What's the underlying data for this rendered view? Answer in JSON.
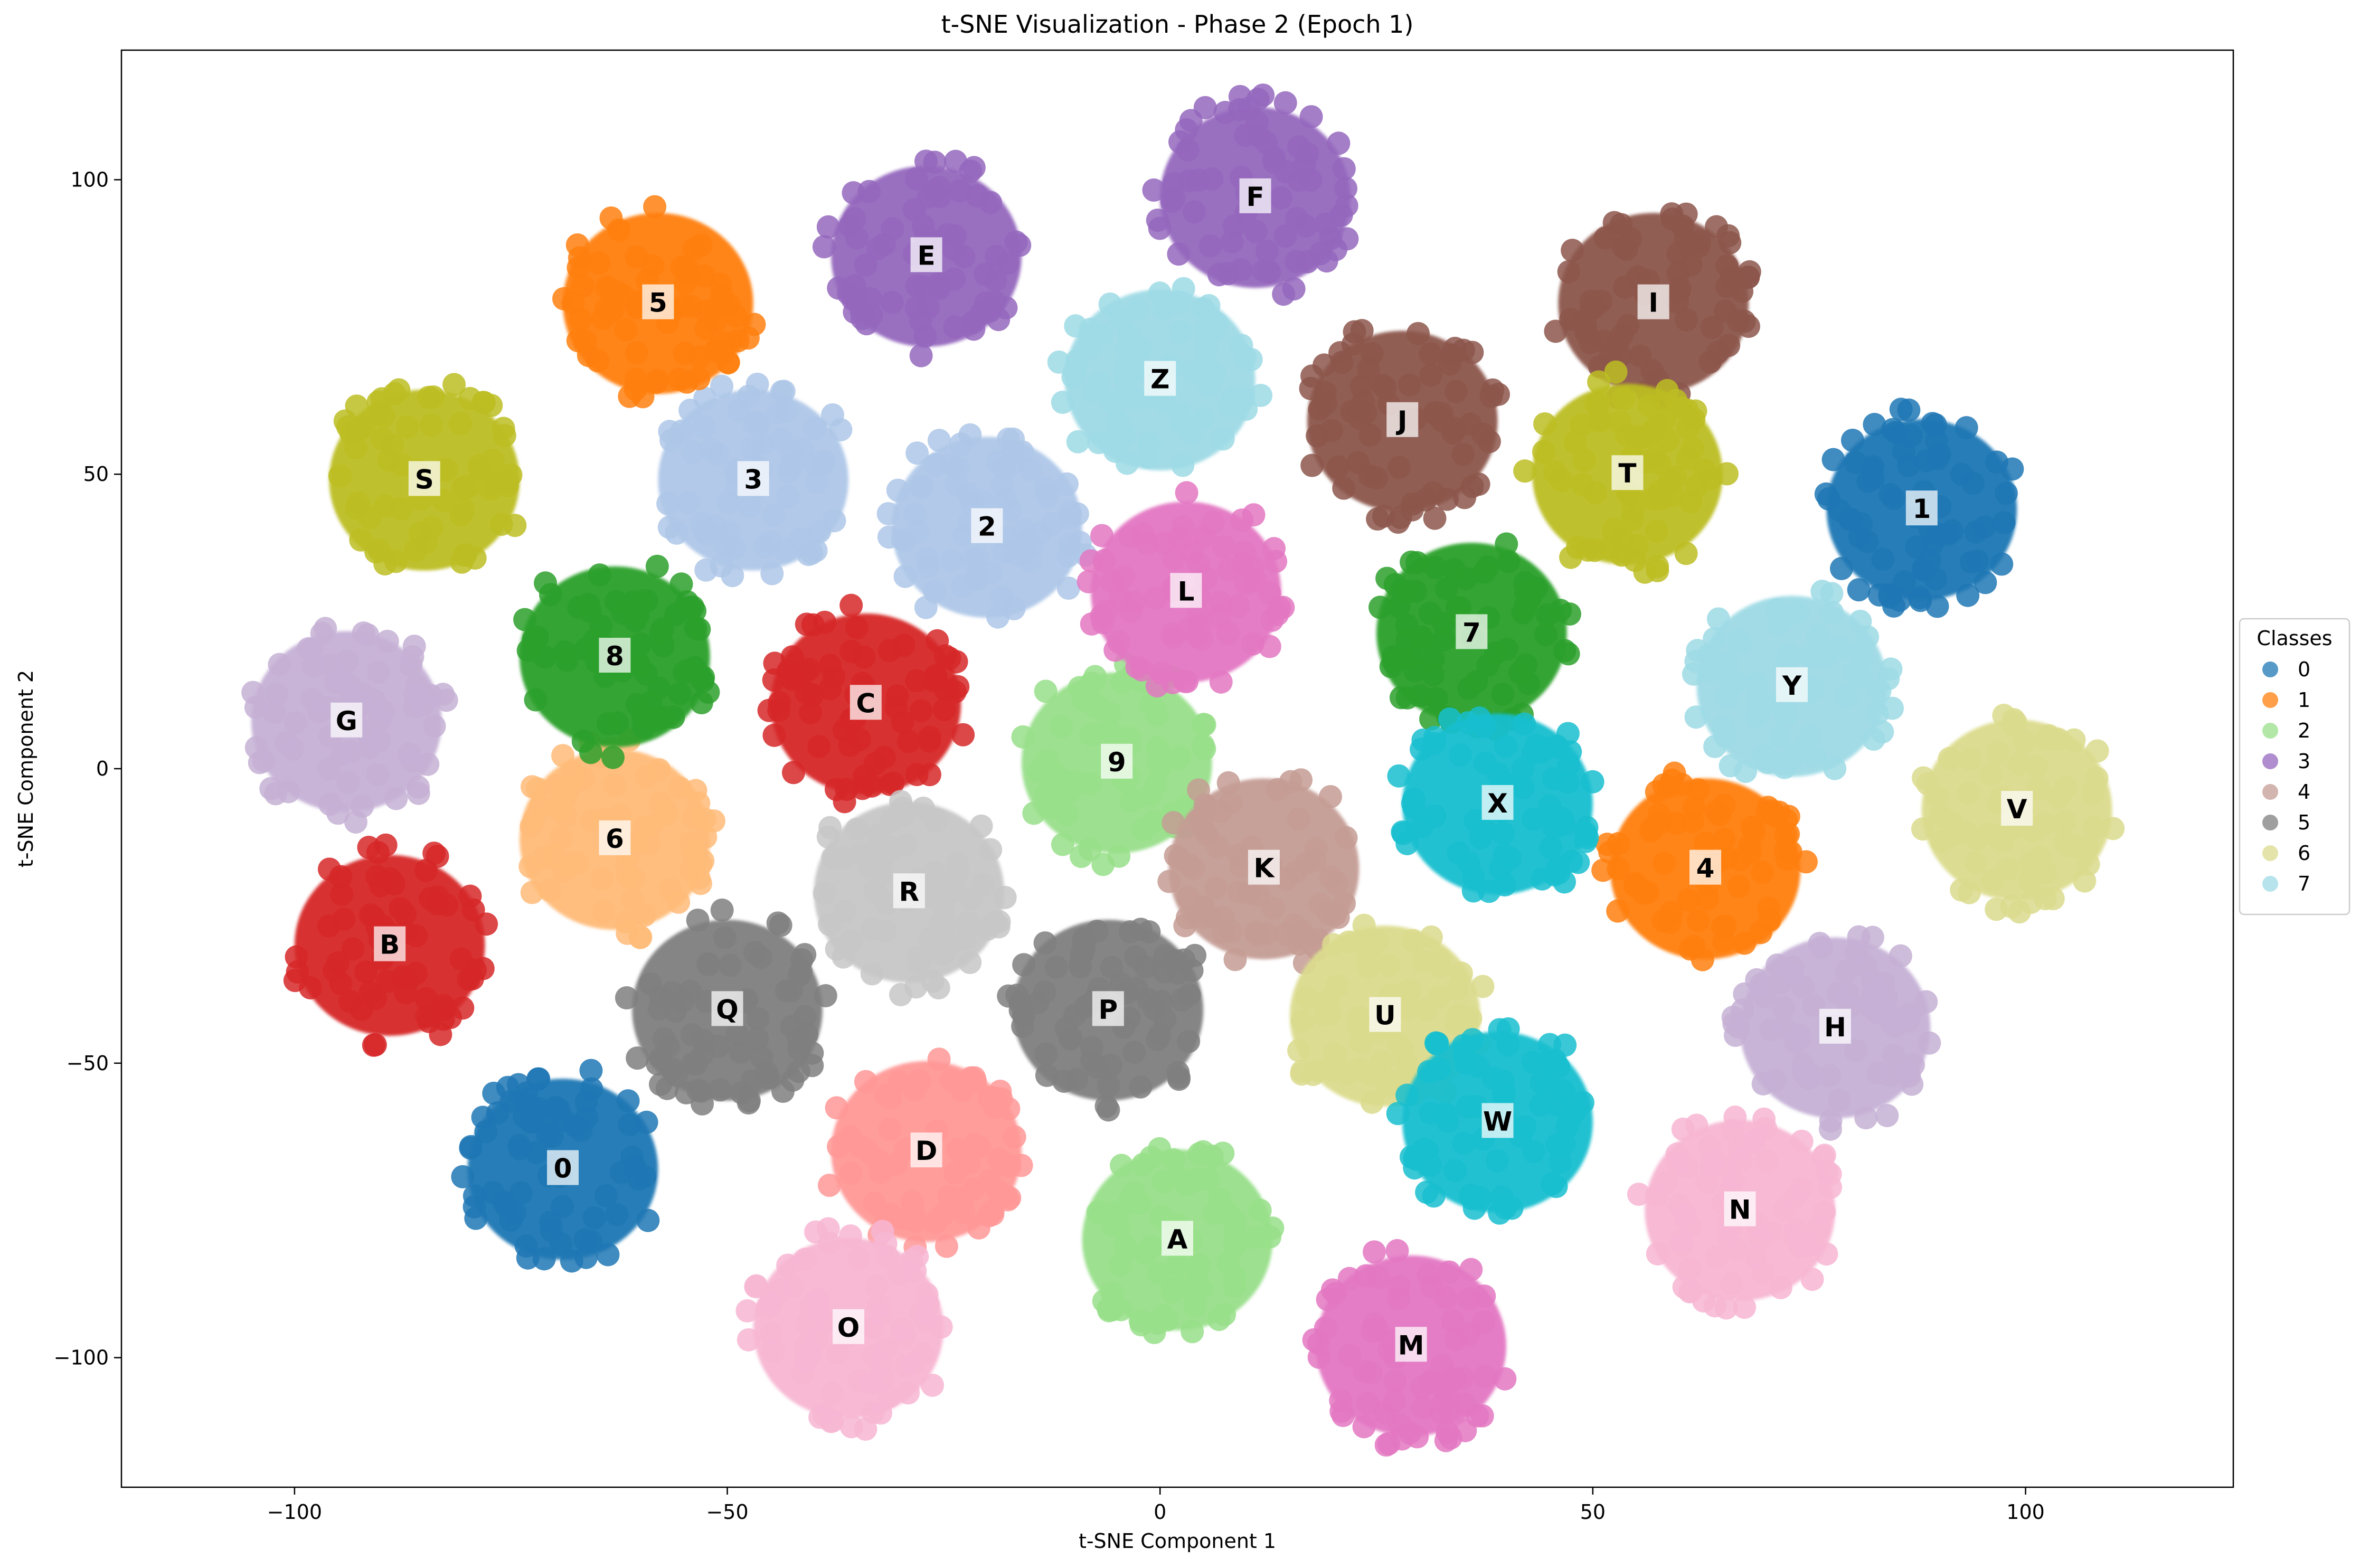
{
  "chart_data": {
    "type": "scatter",
    "title": "t-SNE Visualization - Phase 2 (Epoch 1)",
    "xlabel": "t-SNE Component 1",
    "ylabel": "t-SNE Component 2",
    "xlim": [
      -120,
      124
    ],
    "ylim": [
      -122,
      122
    ],
    "xticks": [
      -100,
      -50,
      0,
      50,
      100
    ],
    "yticks": [
      -100,
      -50,
      0,
      50,
      100
    ],
    "tick_labels": {
      "x": [
        "−100",
        "−50",
        "0",
        "50",
        "100"
      ],
      "y": [
        "−100",
        "−50",
        "0",
        "50",
        "100"
      ]
    },
    "grid": false,
    "legend": {
      "title": "Classes",
      "placement": "center-right, outside plot",
      "entries": [
        {
          "label": "0",
          "color": "#1f77b4"
        },
        {
          "label": "1",
          "color": "#ff7f0e"
        },
        {
          "label": "2",
          "color": "#98df8a"
        },
        {
          "label": "3",
          "color": "#9467bd"
        },
        {
          "label": "4",
          "color": "#c49c94"
        },
        {
          "label": "5",
          "color": "#7f7f7f"
        },
        {
          "label": "6",
          "color": "#dbdb8d"
        },
        {
          "label": "7",
          "color": "#9edae5"
        }
      ]
    },
    "clusters": [
      {
        "label": "0",
        "x": -69,
        "y": -68,
        "color": "#1f77b4"
      },
      {
        "label": "1",
        "x": 88,
        "y": 44,
        "color": "#1f77b4"
      },
      {
        "label": "2",
        "x": -20,
        "y": 41,
        "color": "#aec7e8"
      },
      {
        "label": "3",
        "x": -47,
        "y": 49,
        "color": "#aec7e8"
      },
      {
        "label": "4",
        "x": 63,
        "y": -17,
        "color": "#ff7f0e"
      },
      {
        "label": "5",
        "x": -58,
        "y": 79,
        "color": "#ff7f0e"
      },
      {
        "label": "6",
        "x": -63,
        "y": -12,
        "color": "#ffbb78"
      },
      {
        "label": "7",
        "x": 36,
        "y": 23,
        "color": "#2ca02c"
      },
      {
        "label": "8",
        "x": -63,
        "y": 19,
        "color": "#2ca02c"
      },
      {
        "label": "9",
        "x": -5,
        "y": 1,
        "color": "#98df8a"
      },
      {
        "label": "A",
        "x": 2,
        "y": -80,
        "color": "#98df8a"
      },
      {
        "label": "B",
        "x": -89,
        "y": -30,
        "color": "#d62728"
      },
      {
        "label": "C",
        "x": -34,
        "y": 11,
        "color": "#d62728"
      },
      {
        "label": "D",
        "x": -27,
        "y": -65,
        "color": "#ff9896"
      },
      {
        "label": "E",
        "x": -27,
        "y": 87,
        "color": "#9467bd"
      },
      {
        "label": "F",
        "x": 11,
        "y": 97,
        "color": "#9467bd"
      },
      {
        "label": "G",
        "x": -94,
        "y": 8,
        "color": "#c5b0d5"
      },
      {
        "label": "H",
        "x": 78,
        "y": -44,
        "color": "#c5b0d5"
      },
      {
        "label": "I",
        "x": 57,
        "y": 79,
        "color": "#8c564b"
      },
      {
        "label": "J",
        "x": 28,
        "y": 59,
        "color": "#8c564b"
      },
      {
        "label": "K",
        "x": 12,
        "y": -17,
        "color": "#c49c94"
      },
      {
        "label": "L",
        "x": 3,
        "y": 30,
        "color": "#e377c2"
      },
      {
        "label": "M",
        "x": 29,
        "y": -98,
        "color": "#e377c2"
      },
      {
        "label": "N",
        "x": 67,
        "y": -75,
        "color": "#f7b6d2"
      },
      {
        "label": "O",
        "x": -36,
        "y": -95,
        "color": "#f7b6d2"
      },
      {
        "label": "P",
        "x": -6,
        "y": -41,
        "color": "#7f7f7f"
      },
      {
        "label": "Q",
        "x": -50,
        "y": -41,
        "color": "#7f7f7f"
      },
      {
        "label": "R",
        "x": -29,
        "y": -21,
        "color": "#c7c7c7"
      },
      {
        "label": "S",
        "x": -85,
        "y": 49,
        "color": "#bcbd22"
      },
      {
        "label": "T",
        "x": 54,
        "y": 50,
        "color": "#bcbd22"
      },
      {
        "label": "U",
        "x": 26,
        "y": -42,
        "color": "#dbdb8d"
      },
      {
        "label": "V",
        "x": 99,
        "y": -7,
        "color": "#dbdb8d"
      },
      {
        "label": "W",
        "x": 39,
        "y": -60,
        "color": "#17becf"
      },
      {
        "label": "X",
        "x": 39,
        "y": -6,
        "color": "#17becf"
      },
      {
        "label": "Y",
        "x": 73,
        "y": 14,
        "color": "#9edae5"
      },
      {
        "label": "Z",
        "x": 0,
        "y": 66,
        "color": "#9edae5"
      }
    ]
  }
}
